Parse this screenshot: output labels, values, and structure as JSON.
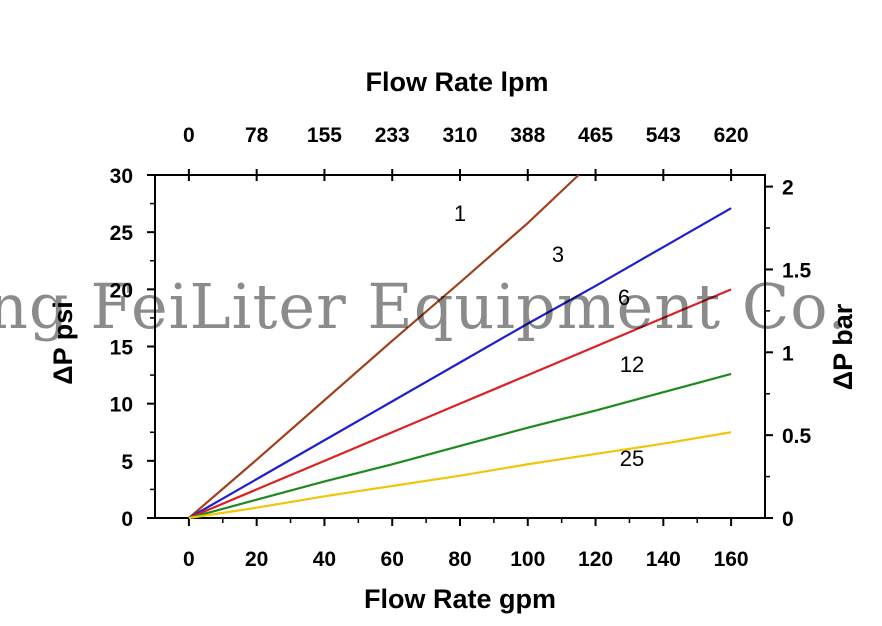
{
  "chart_data": {
    "type": "line",
    "x": [
      0,
      20,
      40,
      60,
      80,
      100,
      120,
      140,
      160
    ],
    "series": [
      {
        "name": "1",
        "color": "#a0411c",
        "x": [
          0,
          20,
          40,
          60,
          80,
          100,
          115
        ],
        "values": [
          0,
          5.1,
          10.3,
          15.5,
          20.6,
          25.8,
          30
        ]
      },
      {
        "name": "3",
        "color": "#1f1fd1",
        "x": [
          0,
          20,
          40,
          60,
          80,
          100,
          120,
          140,
          160
        ],
        "values": [
          0,
          3.4,
          6.8,
          10.2,
          13.6,
          17.0,
          20.3,
          23.7,
          27.1
        ]
      },
      {
        "name": "6",
        "color": "#dd2020",
        "x": [
          0,
          20,
          40,
          60,
          80,
          100,
          120,
          140,
          160
        ],
        "values": [
          0,
          2.5,
          5.0,
          7.5,
          10.0,
          12.5,
          15.0,
          17.5,
          20.0
        ]
      },
      {
        "name": "12",
        "color": "#1e8a1e",
        "x": [
          0,
          20,
          40,
          60,
          80,
          100,
          120,
          140,
          160
        ],
        "values": [
          0,
          1.6,
          3.2,
          4.7,
          6.3,
          7.9,
          9.4,
          11.0,
          12.6
        ]
      },
      {
        "name": "25",
        "color": "#f2c40c",
        "x": [
          0,
          20,
          40,
          60,
          80,
          100,
          120,
          140,
          160
        ],
        "values": [
          0,
          0.9,
          1.9,
          2.8,
          3.7,
          4.7,
          5.6,
          6.5,
          7.5
        ]
      }
    ],
    "xlabel": "Flow Rate gpm",
    "x2label": "Flow Rate lpm",
    "ylabel": "ΔP psi",
    "y2label": "ΔP bar",
    "xlim": [
      -10,
      170
    ],
    "ylim": [
      0,
      30
    ],
    "y2lim": [
      0,
      2.07
    ],
    "xticks": [
      "0",
      "20",
      "40",
      "60",
      "80",
      "100",
      "120",
      "140",
      "160"
    ],
    "x2ticks": [
      "0",
      "78",
      "155",
      "233",
      "310",
      "388",
      "465",
      "543",
      "620"
    ],
    "yticks": [
      "0",
      "5",
      "10",
      "15",
      "20",
      "25",
      "30"
    ],
    "y2ticks": [
      "0",
      "0.5",
      "1",
      "1.5",
      "2"
    ],
    "grid": false
  },
  "watermark": "ng FeiLiter Equipment Co."
}
